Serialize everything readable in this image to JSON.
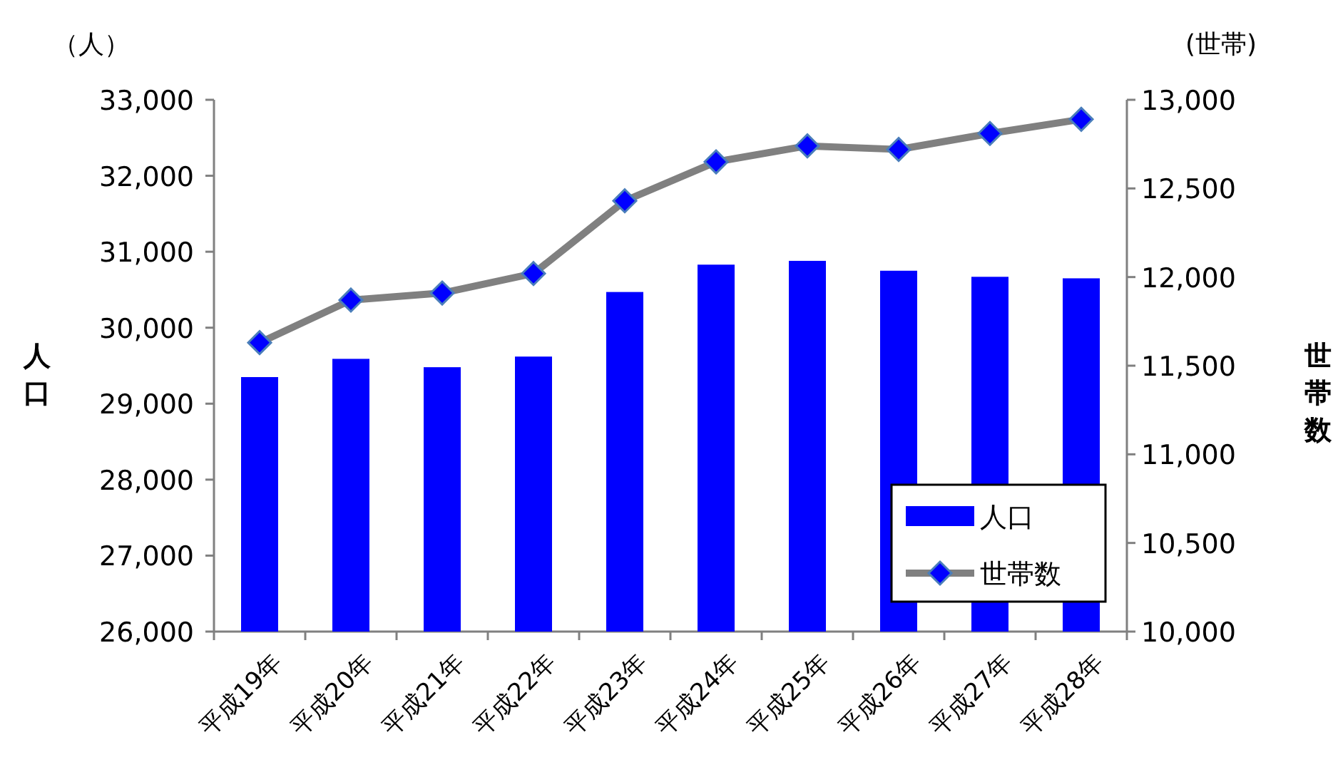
{
  "chart_data": {
    "type": "bar",
    "categories": [
      "平成19年",
      "平成20年",
      "平成21年",
      "平成22年",
      "平成23年",
      "平成24年",
      "平成25年",
      "平成26年",
      "平成27年",
      "平成28年"
    ],
    "series": [
      {
        "name": "人口",
        "color": "#0000ff",
        "values": [
          29350,
          29590,
          29480,
          29620,
          30470,
          30830,
          30880,
          30750,
          30670,
          30650
        ]
      },
      {
        "name": "世帯数",
        "type": "line",
        "axis": "y2",
        "color": "#808080",
        "marker": "diamond",
        "values": [
          11630,
          11870,
          11910,
          12020,
          12430,
          12650,
          12740,
          12720,
          12810,
          12890
        ]
      }
    ],
    "ylabel": "人口",
    "y2label": "世帯数",
    "ylim": [
      26000,
      33000
    ],
    "yticks": [
      {
        "value": 26000,
        "label": "26,000"
      },
      {
        "value": 27000,
        "label": "27,000"
      },
      {
        "value": 28000,
        "label": "28,000"
      },
      {
        "value": 29000,
        "label": "29,000"
      },
      {
        "value": 30000,
        "label": "30,000"
      },
      {
        "value": 31000,
        "label": "31,000"
      },
      {
        "value": 32000,
        "label": "32,000"
      },
      {
        "value": 33000,
        "label": "33,000"
      }
    ],
    "y2lim": [
      10000,
      13000
    ],
    "y2ticks": [
      {
        "value": 10000,
        "label": "10,000"
      },
      {
        "value": 10500,
        "label": "10,500"
      },
      {
        "value": 11000,
        "label": "11,000"
      },
      {
        "value": 11500,
        "label": "11,500"
      },
      {
        "value": 12000,
        "label": "12,000"
      },
      {
        "value": 12500,
        "label": "12,500"
      },
      {
        "value": 13000,
        "label": "13,000"
      }
    ],
    "annotations": [
      "（人）",
      "(世帯)"
    ],
    "legend": "bottom right",
    "grid": false
  }
}
